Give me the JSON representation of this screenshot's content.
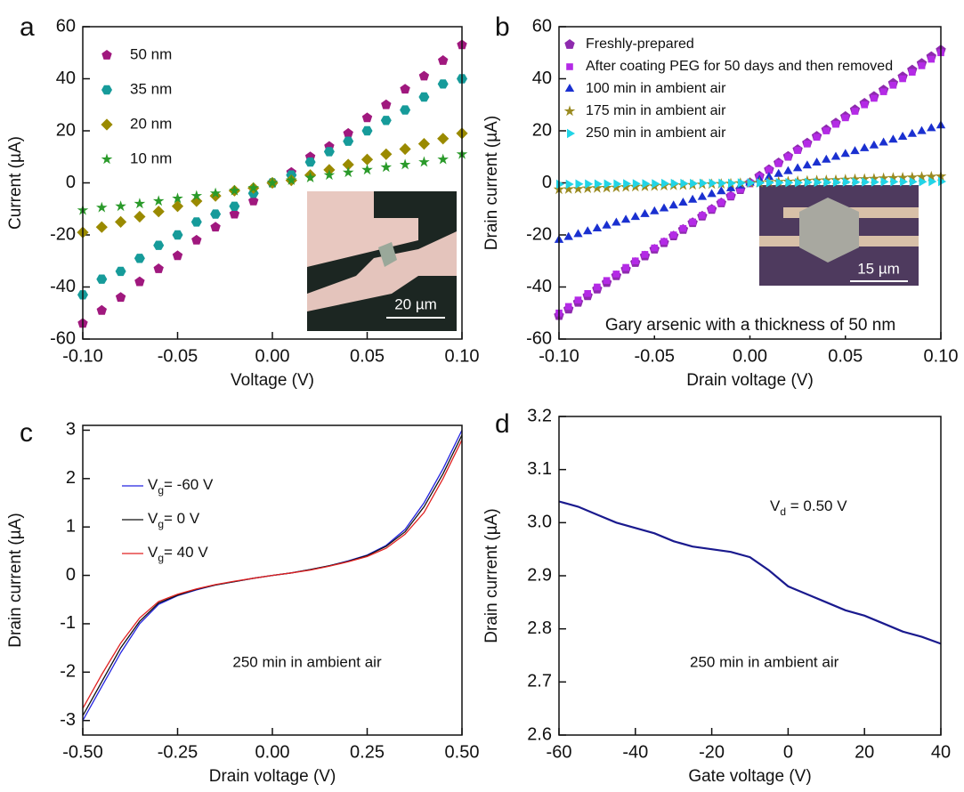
{
  "chart_data": [
    {
      "type": "scatter",
      "panel_label": "a",
      "xlabel": "Voltage (V)",
      "ylabel": "Current (µA)",
      "legend": "upper left",
      "inset_scale_bar": "20 µm",
      "xlim": [
        -0.1,
        0.1
      ],
      "ylim": [
        -60,
        60
      ],
      "xticks": [
        {
          "value": -0.1,
          "label": "-0.10"
        },
        -0.05,
        {
          "value": 0,
          "label": "0.00"
        },
        0.05,
        {
          "value": 0.1,
          "label": "0.10"
        }
      ],
      "yticks": [
        -60,
        -40,
        -20,
        0,
        20,
        40,
        60
      ],
      "x": [
        -0.1,
        -0.09,
        -0.08,
        -0.07,
        -0.06,
        -0.05,
        -0.04,
        -0.03,
        -0.02,
        -0.01,
        0,
        0.01,
        0.02,
        0.03,
        0.04,
        0.05,
        0.06,
        0.07,
        0.08,
        0.09,
        0.1
      ],
      "series": [
        {
          "name": "50 nm",
          "color": "#a0187e",
          "marker": "pentagon",
          "values": [
            -54,
            -49,
            -44,
            -38,
            -33,
            -28,
            -22,
            -17,
            -12,
            -7,
            0,
            4,
            10,
            14,
            19,
            25,
            30,
            36,
            41,
            47,
            53
          ]
        },
        {
          "name": "35 nm",
          "color": "#169b9a",
          "marker": "hexagon",
          "values": [
            -43,
            -37,
            -34,
            -29,
            -24,
            -20,
            -15,
            -12,
            -9,
            -4,
            0,
            3,
            8,
            12,
            16,
            20,
            24,
            28,
            33,
            38,
            40
          ]
        },
        {
          "name": "20 nm",
          "color": "#9a8a00",
          "marker": "diamond",
          "values": [
            -19,
            -17,
            -15,
            -13,
            -11,
            -9,
            -7,
            -5,
            -3,
            -2,
            0,
            1,
            3,
            5,
            7,
            9,
            11,
            13,
            15,
            17,
            19
          ]
        },
        {
          "name": "10 nm",
          "color": "#2a9a2a",
          "marker": "star",
          "values": [
            -10.5,
            -9.5,
            -9,
            -8,
            -7,
            -6,
            -5,
            -4,
            -3,
            -2,
            0,
            1,
            2,
            3,
            4,
            5,
            6,
            7,
            8,
            9,
            11
          ]
        }
      ]
    },
    {
      "type": "scatter",
      "panel_label": "b",
      "xlabel": "Drain voltage (V)",
      "ylabel": "Drain current (µA)",
      "legend": "upper left",
      "inset_scale_bar": "15 µm",
      "annotation": "Gary arsenic with a thickness of 50 nm",
      "xlim": [
        -0.1,
        0.1
      ],
      "ylim": [
        -60,
        60
      ],
      "xticks": [
        {
          "value": -0.1,
          "label": "-0.10"
        },
        -0.05,
        {
          "value": 0,
          "label": "0.00"
        },
        0.05,
        {
          "value": 0.1,
          "label": "0.10"
        }
      ],
      "yticks": [
        -60,
        -40,
        -20,
        0,
        20,
        40,
        60
      ],
      "x": [
        -0.1,
        -0.095,
        -0.09,
        -0.085,
        -0.08,
        -0.075,
        -0.07,
        -0.065,
        -0.06,
        -0.055,
        -0.05,
        -0.045,
        -0.04,
        -0.035,
        -0.03,
        -0.025,
        -0.02,
        -0.015,
        -0.01,
        -0.005,
        0,
        0.005,
        0.01,
        0.015,
        0.02,
        0.025,
        0.03,
        0.035,
        0.04,
        0.045,
        0.05,
        0.055,
        0.06,
        0.065,
        0.07,
        0.075,
        0.08,
        0.085,
        0.09,
        0.095,
        0.1
      ],
      "series": [
        {
          "name": "Freshly-prepared",
          "color": "#8e2aae",
          "marker": "pentagon",
          "values": [
            -51,
            -48.5,
            -45.9,
            -43.4,
            -40.8,
            -38.3,
            -35.7,
            -33.2,
            -30.6,
            -28.1,
            -25.5,
            -23,
            -20.4,
            -17.9,
            -15.3,
            -12.8,
            -10.2,
            -7.7,
            -5.1,
            -2.6,
            0,
            2.6,
            5.1,
            7.7,
            10.2,
            12.8,
            15.3,
            17.9,
            20.4,
            23,
            25.5,
            28.1,
            30.6,
            33.2,
            35.7,
            38.3,
            40.8,
            43.4,
            45.9,
            48.5,
            51
          ]
        },
        {
          "name": "After coating PEG for 50 days and then removed",
          "color": "#b42ae6",
          "marker": "square",
          "values": [
            -50,
            -47.5,
            -45,
            -42.5,
            -40,
            -37.5,
            -35,
            -32.5,
            -30,
            -27.5,
            -25,
            -22.5,
            -20,
            -17.5,
            -15,
            -12.5,
            -10,
            -7.5,
            -5,
            -2.5,
            0,
            2.5,
            5,
            7.5,
            10,
            12.5,
            15,
            17.5,
            20,
            22.5,
            25,
            27.5,
            30,
            32.5,
            35,
            37.5,
            40,
            42.5,
            45,
            47.5,
            50
          ]
        },
        {
          "name": "100 min in ambient air",
          "color": "#1a30d0",
          "marker": "triangle",
          "values": [
            -22,
            -20.9,
            -19.8,
            -18.7,
            -17.6,
            -16.5,
            -15.4,
            -14.3,
            -13.2,
            -12.1,
            -11,
            -9.9,
            -8.8,
            -7.7,
            -6.6,
            -5.5,
            -4.4,
            -3.3,
            -2.2,
            -1.1,
            0,
            1.1,
            2.2,
            3.3,
            4.4,
            5.5,
            6.6,
            7.7,
            8.8,
            9.9,
            11,
            12.1,
            13.2,
            14.3,
            15.4,
            16.5,
            17.6,
            18.7,
            19.8,
            20.9,
            22
          ]
        },
        {
          "name": "175 min in ambient air",
          "color": "#9a8a20",
          "marker": "star",
          "values": [
            -2.5,
            -2.4,
            -2.3,
            -2.1,
            -2,
            -1.9,
            -1.8,
            -1.6,
            -1.5,
            -1.4,
            -1.3,
            -1.1,
            -1,
            -0.9,
            -0.8,
            -0.6,
            -0.5,
            -0.4,
            -0.3,
            -0.1,
            0,
            0.1,
            0.3,
            0.4,
            0.5,
            0.6,
            0.8,
            0.9,
            1,
            1.1,
            1.3,
            1.4,
            1.5,
            1.6,
            1.8,
            1.9,
            2,
            2.1,
            2.3,
            2.4,
            2.5
          ]
        },
        {
          "name": "250 min in ambient air",
          "color": "#22d4e6",
          "marker": "triangle-right",
          "values": [
            -0.5,
            -0.5,
            -0.4,
            -0.4,
            -0.4,
            -0.4,
            -0.4,
            -0.3,
            -0.3,
            -0.3,
            -0.3,
            -0.2,
            -0.2,
            -0.2,
            -0.2,
            -0.1,
            -0.1,
            -0.1,
            -0.1,
            0,
            0,
            0,
            0.1,
            0.1,
            0.1,
            0.1,
            0.2,
            0.2,
            0.2,
            0.2,
            0.3,
            0.3,
            0.3,
            0.3,
            0.4,
            0.4,
            0.4,
            0.4,
            0.4,
            0.5,
            0.5
          ]
        }
      ]
    },
    {
      "type": "line",
      "panel_label": "c",
      "xlabel": "Drain voltage (V)",
      "ylabel": "Drain current (µA)",
      "legend": "upper left",
      "annotation": "250 min in ambient air",
      "xlim": [
        -0.5,
        0.5
      ],
      "ylim": [
        -3.3,
        3.1
      ],
      "xticks": [
        {
          "value": -0.5,
          "label": "-0.50"
        },
        -0.25,
        {
          "value": 0,
          "label": "0.00"
        },
        0.25,
        {
          "value": 0.5,
          "label": "0.50"
        }
      ],
      "yticks": [
        -3,
        -2,
        -1,
        0,
        1,
        2,
        3
      ],
      "x": [
        -0.5,
        -0.45,
        -0.4,
        -0.35,
        -0.3,
        -0.25,
        -0.2,
        -0.15,
        -0.1,
        -0.05,
        0,
        0.05,
        0.1,
        0.15,
        0.2,
        0.25,
        0.3,
        0.35,
        0.4,
        0.45,
        0.5
      ],
      "series": [
        {
          "name": "Vg= -60 V",
          "color": "#2424e0",
          "values": [
            -3.0,
            -2.3,
            -1.6,
            -1.0,
            -0.6,
            -0.42,
            -0.3,
            -0.2,
            -0.13,
            -0.06,
            0,
            0.05,
            0.12,
            0.2,
            0.3,
            0.42,
            0.62,
            0.95,
            1.5,
            2.2,
            3.0
          ]
        },
        {
          "name": "Vg= 0 V",
          "color": "#111111",
          "values": [
            -2.9,
            -2.2,
            -1.5,
            -0.95,
            -0.57,
            -0.41,
            -0.29,
            -0.2,
            -0.13,
            -0.06,
            0,
            0.05,
            0.12,
            0.2,
            0.29,
            0.41,
            0.6,
            0.9,
            1.42,
            2.1,
            2.9
          ]
        },
        {
          "name": "Vg= 40 V",
          "color": "#e02020",
          "values": [
            -2.75,
            -2.05,
            -1.4,
            -0.88,
            -0.54,
            -0.39,
            -0.28,
            -0.19,
            -0.12,
            -0.06,
            0,
            0.05,
            0.11,
            0.19,
            0.28,
            0.39,
            0.56,
            0.85,
            1.3,
            2.0,
            2.8
          ]
        }
      ]
    },
    {
      "type": "line",
      "panel_label": "d",
      "xlabel": "Gate voltage (V)",
      "ylabel": "Drain current (µA)",
      "annotations": [
        "Vd = 0.50 V",
        "250 min in ambient air"
      ],
      "xlim": [
        -60,
        40
      ],
      "ylim": [
        2.6,
        3.2
      ],
      "xticks": [
        -60,
        -40,
        -20,
        0,
        20,
        40
      ],
      "yticks": [
        2.6,
        2.7,
        2.8,
        2.9,
        {
          "value": 3,
          "label": "3.0"
        },
        3.1,
        3.2
      ],
      "x": [
        -60,
        -55,
        -50,
        -45,
        -40,
        -35,
        -30,
        -25,
        -20,
        -15,
        -10,
        -5,
        0,
        5,
        10,
        15,
        20,
        25,
        30,
        35,
        40
      ],
      "series": [
        {
          "color": "#1a1a8e",
          "values": [
            3.04,
            3.03,
            3.015,
            3.0,
            2.99,
            2.98,
            2.965,
            2.955,
            2.95,
            2.945,
            2.935,
            2.91,
            2.88,
            2.865,
            2.85,
            2.835,
            2.825,
            2.81,
            2.795,
            2.785,
            2.772
          ]
        }
      ]
    }
  ]
}
